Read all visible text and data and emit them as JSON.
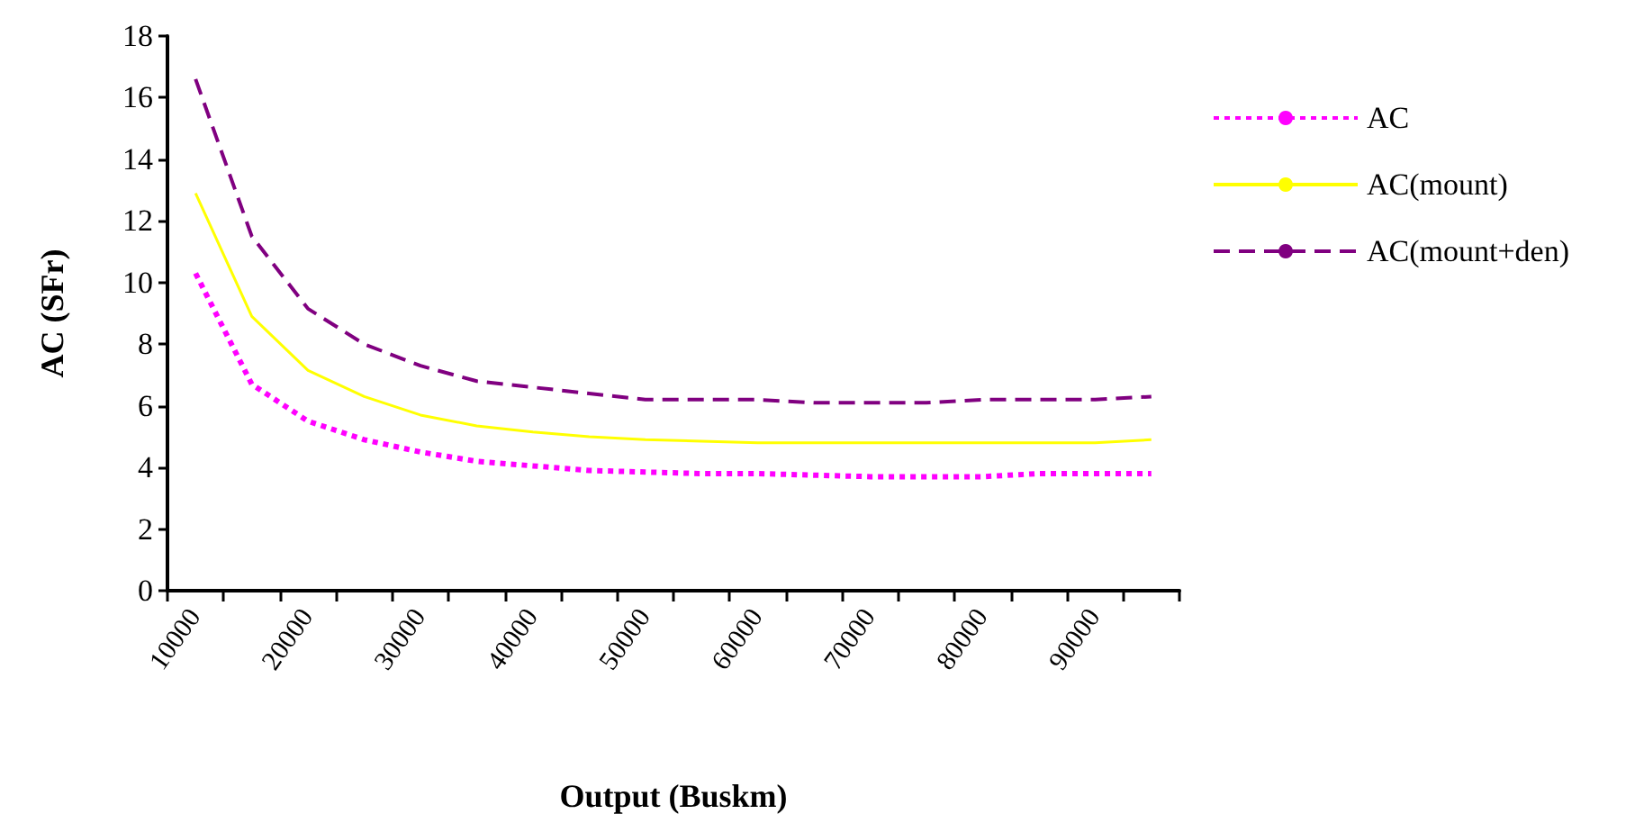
{
  "chart_data": {
    "type": "line",
    "xlabel": "Output (Buskm)",
    "ylabel": "AC (SFr)",
    "categories": [
      "10000",
      null,
      "20000",
      null,
      "30000",
      null,
      "40000",
      null,
      "50000",
      null,
      "60000",
      null,
      "70000",
      null,
      "80000",
      null,
      "90000",
      null
    ],
    "series": [
      {
        "name": "AC",
        "color": "#ff00ff",
        "line_style": "dotted",
        "values": [
          10.3,
          6.7,
          5.5,
          4.9,
          4.5,
          4.2,
          4.05,
          3.9,
          3.85,
          3.8,
          3.8,
          3.75,
          3.7,
          3.7,
          3.7,
          3.8,
          3.8,
          3.8
        ]
      },
      {
        "name": "AC(mount)",
        "color": "#ffff00",
        "line_style": "solid",
        "values": [
          12.9,
          8.9,
          7.15,
          6.3,
          5.7,
          5.35,
          5.15,
          5.0,
          4.9,
          4.85,
          4.8,
          4.8,
          4.8,
          4.8,
          4.8,
          4.8,
          4.8,
          4.9
        ]
      },
      {
        "name": "AC(mount+den)",
        "color": "#800080",
        "line_style": "dashed",
        "values": [
          16.6,
          11.5,
          9.15,
          8.0,
          7.3,
          6.8,
          6.6,
          6.4,
          6.2,
          6.2,
          6.2,
          6.1,
          6.1,
          6.1,
          6.2,
          6.2,
          6.2,
          6.3
        ]
      }
    ],
    "ylim": [
      0,
      18
    ],
    "yticks": [
      0,
      2,
      4,
      6,
      8,
      10,
      12,
      14,
      16,
      18
    ],
    "grid": false,
    "legend": "right",
    "marker": "none"
  }
}
